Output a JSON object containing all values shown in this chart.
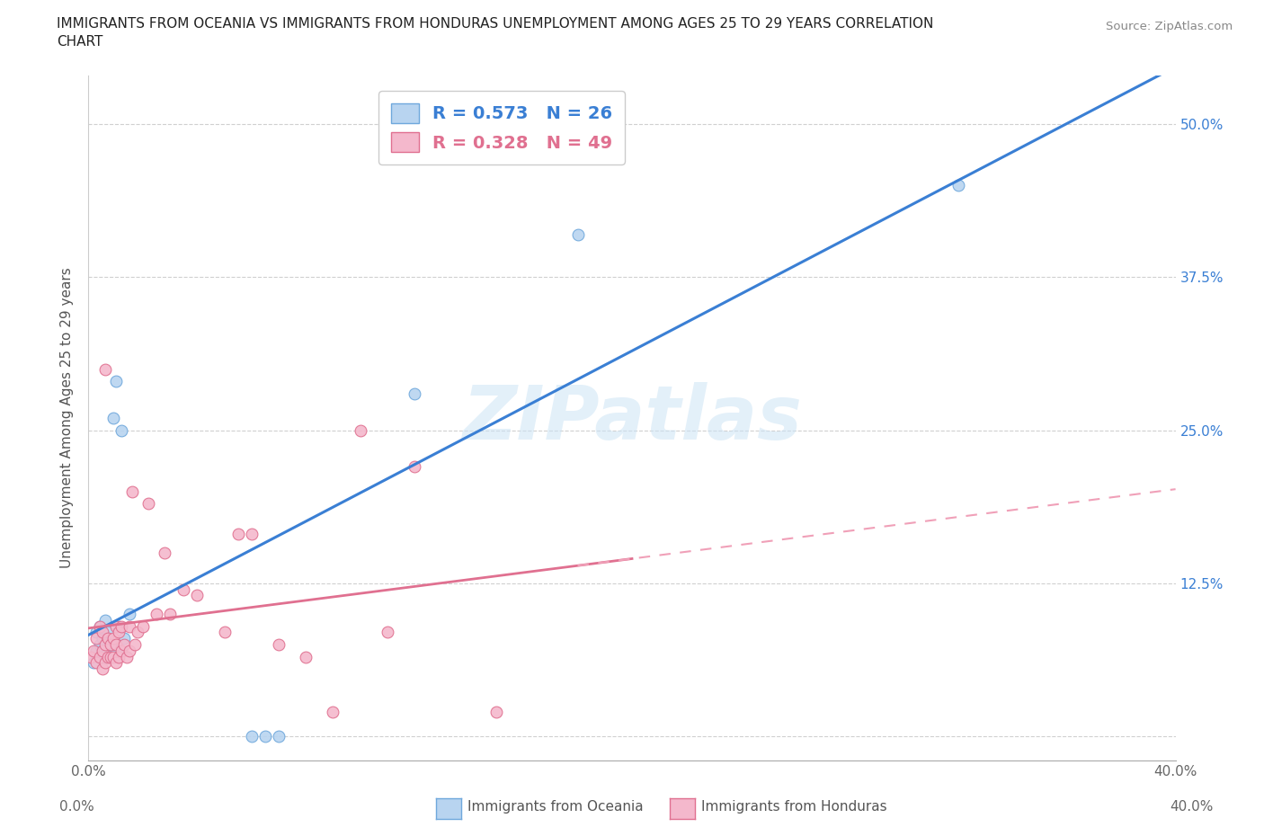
{
  "title_line1": "IMMIGRANTS FROM OCEANIA VS IMMIGRANTS FROM HONDURAS UNEMPLOYMENT AMONG AGES 25 TO 29 YEARS CORRELATION",
  "title_line2": "CHART",
  "source": "Source: ZipAtlas.com",
  "xlabel_oceania": "Immigrants from Oceania",
  "xlabel_honduras": "Immigrants from Honduras",
  "ylabel": "Unemployment Among Ages 25 to 29 years",
  "xlim": [
    0.0,
    0.4
  ],
  "ylim": [
    -0.02,
    0.54
  ],
  "watermark_text": "ZIPatlas",
  "oceania_color": "#b8d4f0",
  "oceania_edge": "#6fa8dc",
  "honduras_color": "#f4b8cc",
  "honduras_edge": "#e07090",
  "line_oceania_color": "#3a7fd4",
  "line_honduras_solid_color": "#e07090",
  "line_honduras_dash_color": "#f0a0b8",
  "R_oceania": 0.573,
  "N_oceania": 26,
  "R_honduras": 0.328,
  "N_honduras": 49,
  "oceania_x": [
    0.002,
    0.003,
    0.003,
    0.004,
    0.004,
    0.004,
    0.005,
    0.005,
    0.006,
    0.006,
    0.007,
    0.007,
    0.008,
    0.009,
    0.01,
    0.01,
    0.011,
    0.012,
    0.013,
    0.015,
    0.06,
    0.065,
    0.07,
    0.12,
    0.18,
    0.32
  ],
  "oceania_y": [
    0.06,
    0.07,
    0.085,
    0.065,
    0.075,
    0.09,
    0.07,
    0.08,
    0.065,
    0.095,
    0.07,
    0.085,
    0.075,
    0.26,
    0.07,
    0.29,
    0.09,
    0.25,
    0.08,
    0.1,
    0.0,
    0.0,
    0.0,
    0.28,
    0.41,
    0.45
  ],
  "honduras_x": [
    0.001,
    0.002,
    0.003,
    0.003,
    0.004,
    0.004,
    0.005,
    0.005,
    0.005,
    0.006,
    0.006,
    0.006,
    0.007,
    0.007,
    0.008,
    0.008,
    0.009,
    0.009,
    0.01,
    0.01,
    0.01,
    0.011,
    0.011,
    0.012,
    0.012,
    0.013,
    0.014,
    0.015,
    0.015,
    0.016,
    0.017,
    0.018,
    0.02,
    0.022,
    0.025,
    0.028,
    0.03,
    0.035,
    0.04,
    0.05,
    0.055,
    0.06,
    0.07,
    0.08,
    0.09,
    0.1,
    0.11,
    0.12,
    0.15
  ],
  "honduras_y": [
    0.065,
    0.07,
    0.06,
    0.08,
    0.065,
    0.09,
    0.055,
    0.07,
    0.085,
    0.06,
    0.075,
    0.3,
    0.065,
    0.08,
    0.065,
    0.075,
    0.065,
    0.08,
    0.06,
    0.075,
    0.09,
    0.065,
    0.085,
    0.07,
    0.09,
    0.075,
    0.065,
    0.07,
    0.09,
    0.2,
    0.075,
    0.085,
    0.09,
    0.19,
    0.1,
    0.15,
    0.1,
    0.12,
    0.115,
    0.085,
    0.165,
    0.165,
    0.075,
    0.065,
    0.02,
    0.25,
    0.085,
    0.22,
    0.02
  ]
}
